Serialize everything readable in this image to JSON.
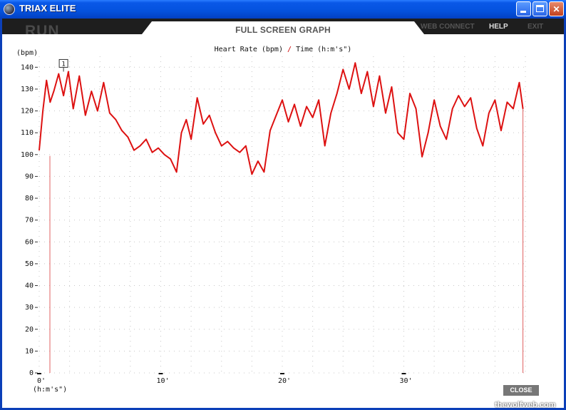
{
  "window": {
    "title": "TRIAX ELITE"
  },
  "toolbar": {
    "logo": "RUN",
    "tab_title": "FULL SCREEN GRAPH",
    "web_connect": "WEB CONNECT",
    "help": "HELP",
    "exit": "EXIT"
  },
  "graph": {
    "title_left": "Heart Rate (bpm)",
    "separator": "/",
    "title_right": "Time (h:m's\")",
    "y_unit": "(bpm)",
    "x_unit": "(h:m's\")",
    "marker_label": "1"
  },
  "footer": {
    "close_label": "CLOSE",
    "watermark": "thewolfweb.com"
  },
  "colors": {
    "series": "#dd1111",
    "title_bar": "#0a58e8",
    "toolbar": "#1e1e1e"
  },
  "chart_data": {
    "type": "line",
    "xlabel": "(h:m's\")",
    "ylabel": "(bpm)",
    "ylim": [
      0,
      140
    ],
    "xlim": [
      0,
      40
    ],
    "yticks": [
      0,
      10,
      20,
      30,
      40,
      50,
      60,
      70,
      80,
      90,
      100,
      110,
      120,
      130,
      140
    ],
    "xticks": [
      {
        "value": 0,
        "label": "0'"
      },
      {
        "value": 10,
        "label": "10'"
      },
      {
        "value": 20,
        "label": "20'"
      },
      {
        "value": 30,
        "label": "30'"
      }
    ],
    "grid": true,
    "series": [
      {
        "x": [
          0,
          0.3,
          0.6,
          0.9,
          1.2,
          1.6,
          2.0,
          2.4,
          2.8,
          3.3,
          3.8,
          4.3,
          4.8,
          5.3,
          5.8,
          6.3,
          6.8,
          7.3,
          7.8,
          8.3,
          8.8,
          9.3,
          9.8,
          10.3,
          10.8,
          11.3,
          11.7,
          12.1,
          12.5,
          13.0,
          13.5,
          14.0,
          14.5,
          15.0,
          15.5,
          16.0,
          16.5,
          17.0,
          17.5,
          18.0,
          18.5,
          19.0,
          19.5,
          20.0,
          20.5,
          21.0,
          21.5,
          22.0,
          22.5,
          23.0,
          23.5,
          24.0,
          24.5,
          25.0,
          25.5,
          26.0,
          26.5,
          27.0,
          27.5,
          28.0,
          28.5,
          29.0,
          29.5,
          30.0,
          30.5,
          31.0,
          31.5,
          32.0,
          32.5,
          33.0,
          33.5,
          34.0,
          34.5,
          35.0,
          35.5,
          36.0,
          36.5,
          37.0,
          37.5,
          38.0,
          38.5,
          39.0,
          39.5,
          39.8
        ],
        "values": [
          102,
          120,
          134,
          124,
          129,
          137,
          127,
          138,
          121,
          136,
          118,
          129,
          120,
          133,
          119,
          116,
          111,
          108,
          102,
          104,
          107,
          101,
          103,
          100,
          98,
          92,
          110,
          116,
          107,
          126,
          114,
          118,
          110,
          104,
          106,
          103,
          101,
          104,
          91,
          97,
          92,
          111,
          118,
          125,
          115,
          123,
          113,
          122,
          117,
          125,
          104,
          119,
          128,
          139,
          130,
          142,
          128,
          138,
          122,
          136,
          119,
          131,
          110,
          107,
          128,
          121,
          99,
          110,
          125,
          113,
          107,
          121,
          127,
          122,
          126,
          112,
          104,
          119,
          125,
          111,
          124,
          121,
          133,
          121
        ]
      }
    ]
  }
}
